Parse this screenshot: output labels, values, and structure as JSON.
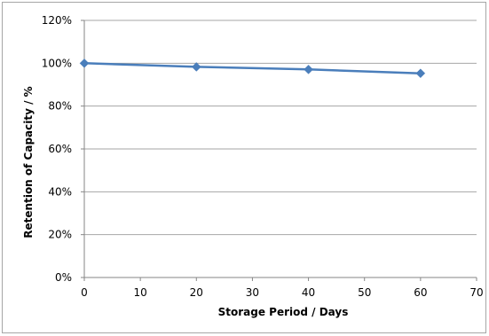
{
  "chart_data": {
    "type": "line",
    "xlabel": "Storage Period / Days",
    "ylabel": "Retention of Capacity / %",
    "xlim": [
      0,
      70
    ],
    "ylim": [
      0,
      120
    ],
    "x_ticks": [
      0,
      10,
      20,
      30,
      40,
      50,
      60,
      70
    ],
    "y_ticks": [
      0,
      20,
      40,
      60,
      80,
      100,
      120
    ],
    "y_tick_format": "percent",
    "grid": "horizontal",
    "legend": "none",
    "series": [
      {
        "x": [
          0,
          20,
          40,
          60
        ],
        "y": [
          100,
          98.3,
          97.1,
          95.3
        ],
        "color": "#4a7ebb",
        "marker": "diamond"
      }
    ]
  }
}
